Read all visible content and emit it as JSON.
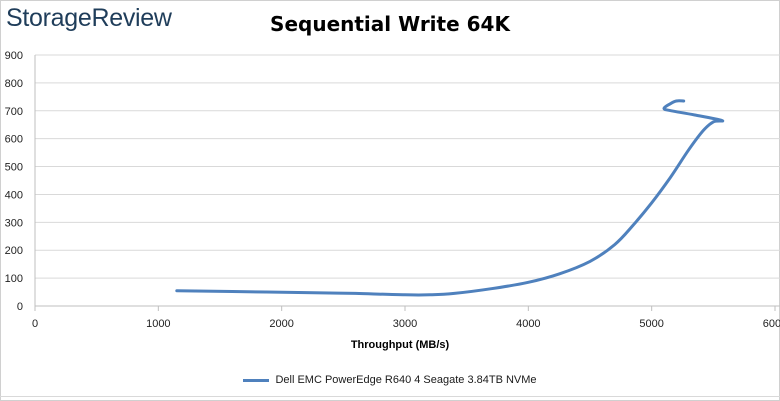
{
  "logo": {
    "text": "StorageReview"
  },
  "chart_data": {
    "type": "line",
    "title": "Sequential Write 64K",
    "xlabel": "Throughput (MB/s)",
    "ylabel": "",
    "xlim": [
      0,
      6000
    ],
    "ylim": [
      0,
      900
    ],
    "xticks": [
      "0",
      "1000",
      "2000",
      "3000",
      "4000",
      "5000",
      "6000"
    ],
    "yticks": [
      "0",
      "100",
      "200",
      "300",
      "400",
      "500",
      "600",
      "700",
      "800",
      "900"
    ],
    "grid": true,
    "legend_position": "bottom",
    "series": [
      {
        "name": "Dell EMC PowerEdge R640 4 Seagate 3.84TB NVMe",
        "color": "#4f81bd",
        "x": [
          1150,
          1600,
          2200,
          2600,
          3000,
          3200,
          3400,
          3700,
          4000,
          4250,
          4500,
          4700,
          4850,
          5000,
          5150,
          5300,
          5420,
          5500,
          5570,
          5350,
          5160,
          5100,
          5150,
          5200,
          5260
        ],
        "y": [
          55,
          52,
          48,
          45,
          40,
          40,
          45,
          62,
          85,
          115,
          160,
          220,
          290,
          370,
          460,
          560,
          630,
          660,
          665,
          685,
          700,
          708,
          725,
          735,
          735
        ]
      }
    ]
  }
}
